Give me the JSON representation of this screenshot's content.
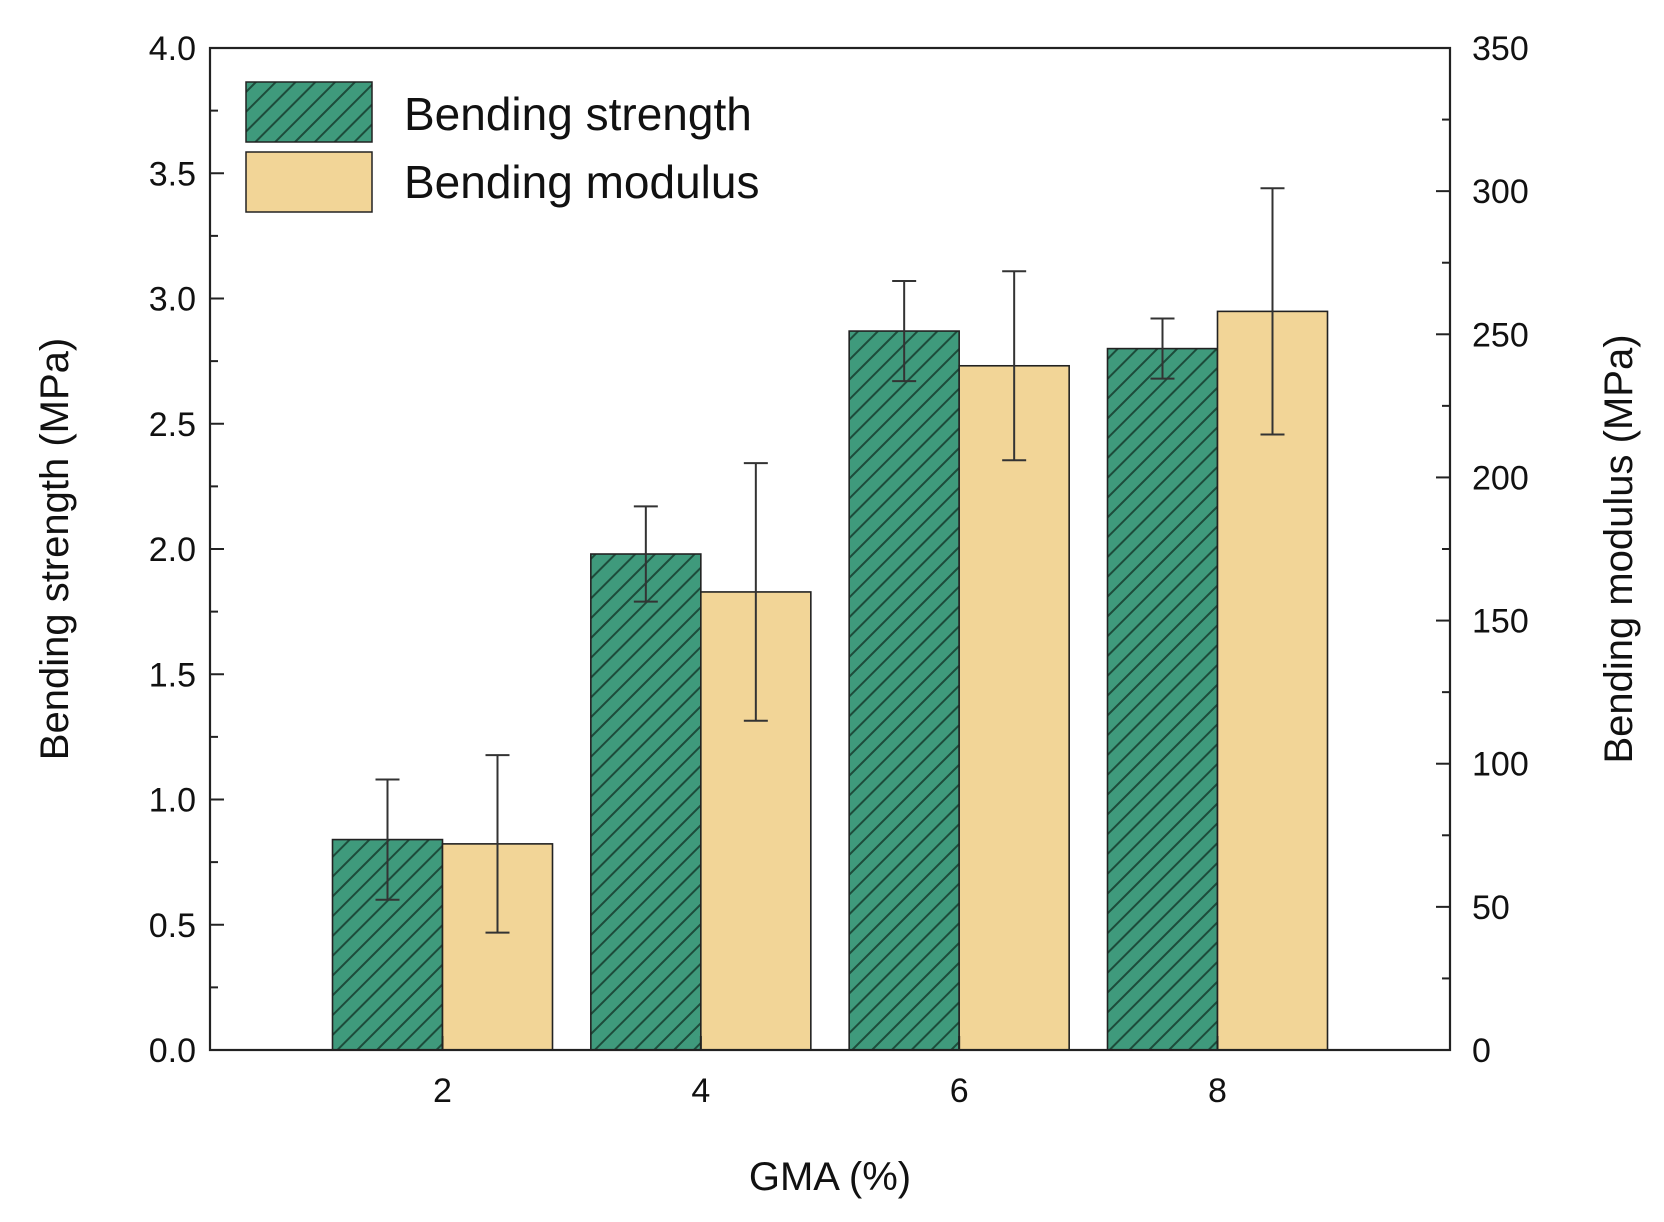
{
  "chart_data": {
    "type": "bar",
    "categories": [
      "2",
      "4",
      "6",
      "8"
    ],
    "xlabel": "GMA (%)",
    "ylabel": "Bending strength (MPa)",
    "ylabel_right": "Bending modulus (MPa)",
    "ylim": [
      0,
      4.0
    ],
    "ylim_right": [
      0,
      350
    ],
    "yticks": [
      "0.0",
      "0.5",
      "1.0",
      "1.5",
      "2.0",
      "2.5",
      "3.0",
      "3.5",
      "4.0"
    ],
    "yticks_right": [
      "0",
      "50",
      "100",
      "150",
      "200",
      "250",
      "300",
      "350"
    ],
    "legend_position": "top-left",
    "series": [
      {
        "name": "Bending strength",
        "axis": "left",
        "values": [
          0.84,
          1.98,
          2.87,
          2.8
        ],
        "errors": [
          0.24,
          0.19,
          0.2,
          0.12
        ],
        "color": "#3f9a7c",
        "hatch_color": "#1d4c3b",
        "pattern": "hatched"
      },
      {
        "name": "Bending modulus",
        "axis": "right",
        "values": [
          72,
          160,
          239,
          258
        ],
        "errors": [
          31,
          45,
          33,
          43
        ],
        "color": "#f2d597",
        "pattern": "solid"
      }
    ]
  }
}
